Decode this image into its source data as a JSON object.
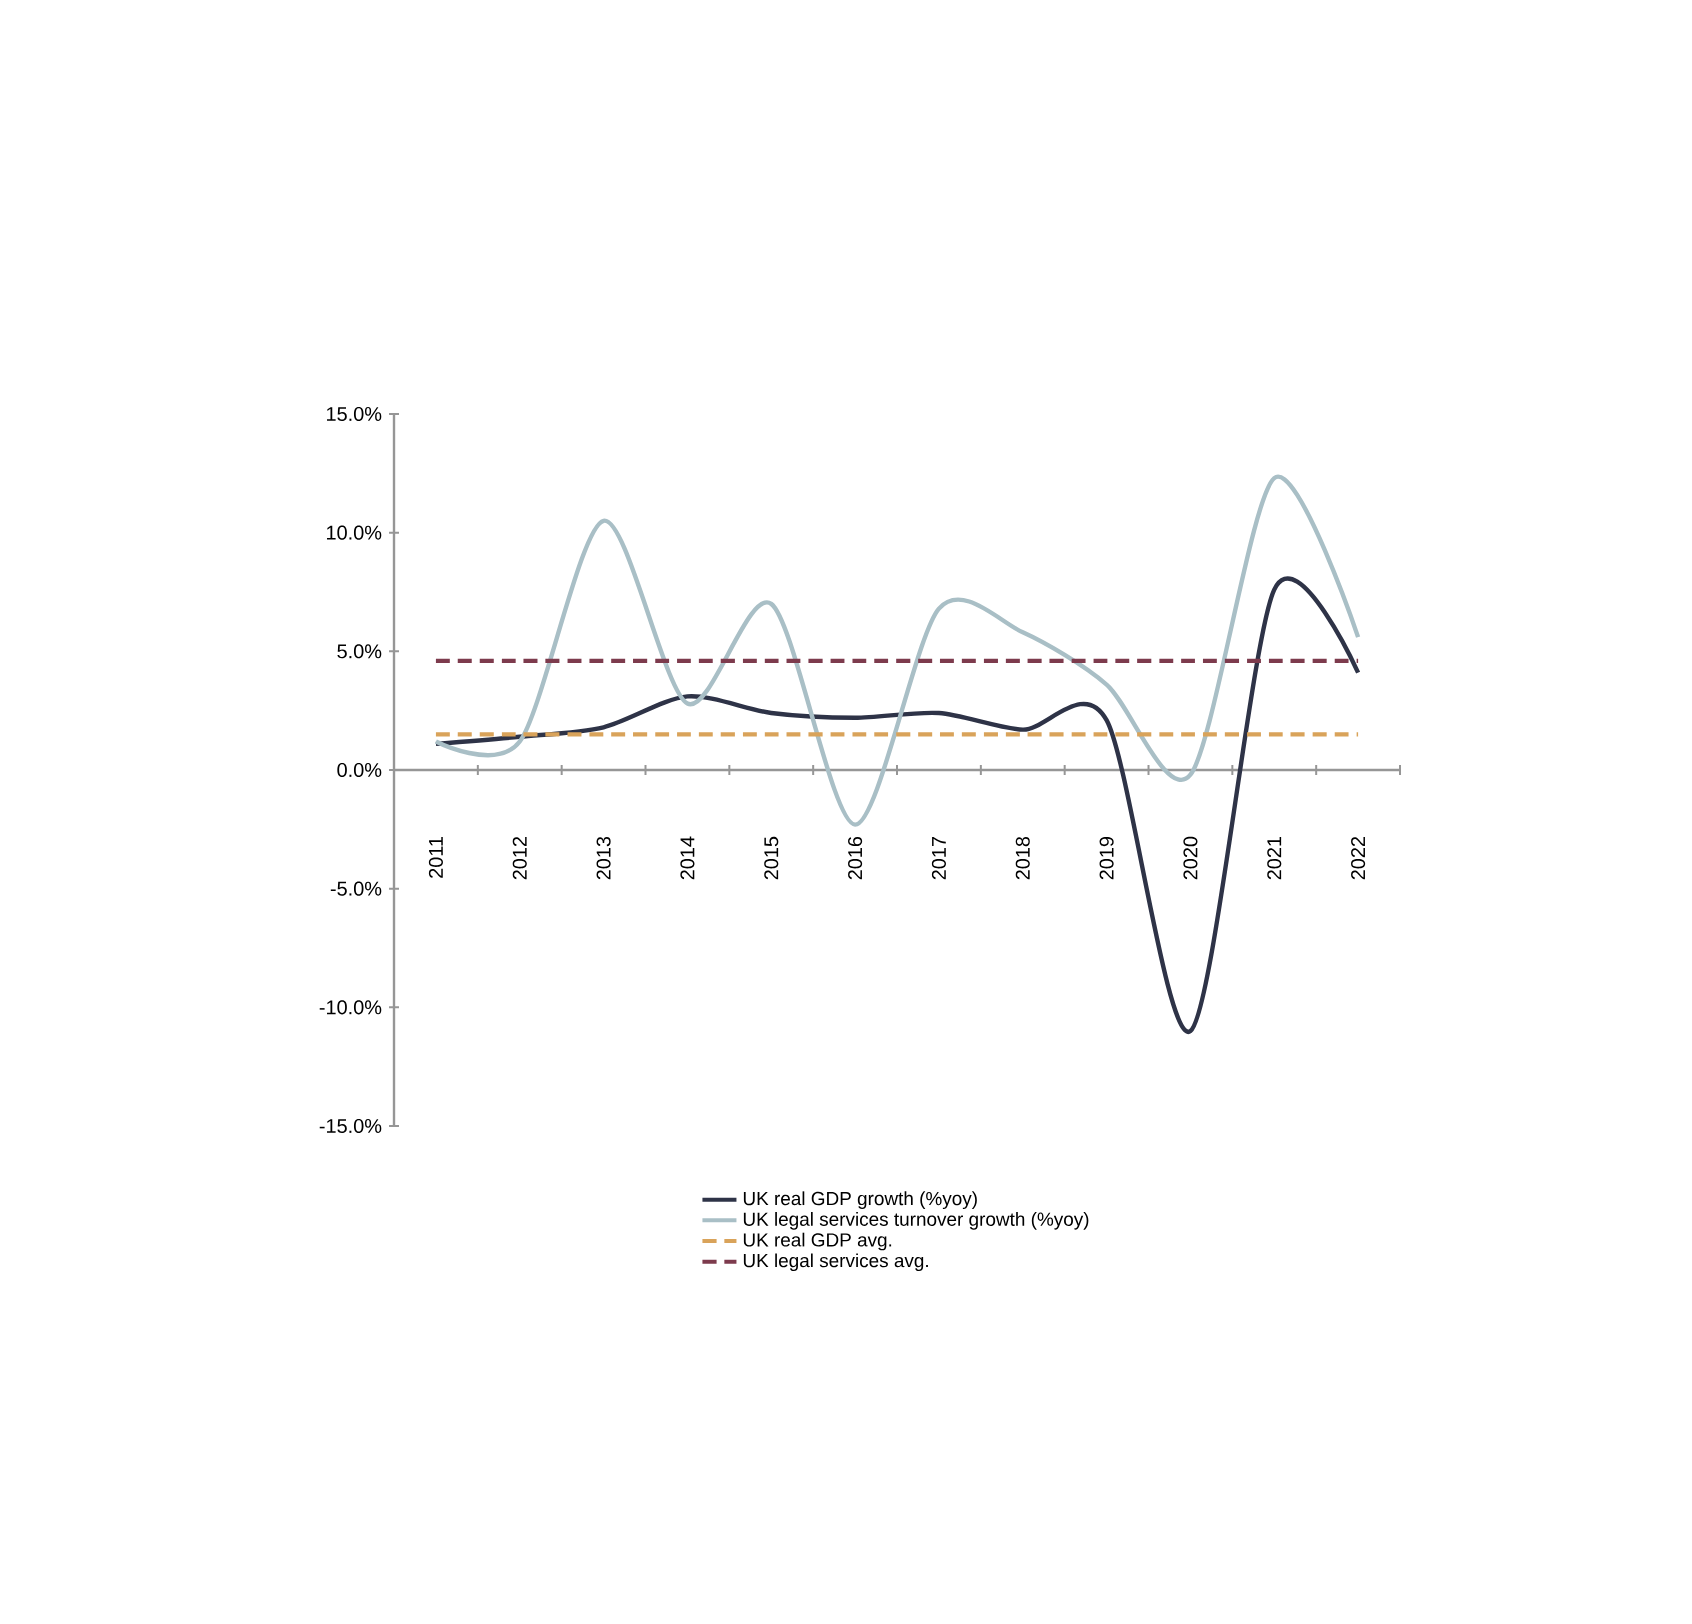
{
  "chart_data": {
    "type": "line",
    "categories": [
      "2011",
      "2012",
      "2013",
      "2014",
      "2015",
      "2016",
      "2017",
      "2018",
      "2019",
      "2020",
      "2021",
      "2022"
    ],
    "series": [
      {
        "name": "UK real GDP growth (%yoy)",
        "color": "#2e3347",
        "values": [
          1.1,
          1.4,
          1.8,
          3.1,
          2.4,
          2.2,
          2.4,
          1.7,
          2.1,
          -11.0,
          7.6,
          4.1
        ]
      },
      {
        "name": "UK legal services turnover growth (%yoy)",
        "color": "#a9bfc6",
        "values": [
          1.2,
          1.2,
          10.5,
          2.8,
          7.0,
          -2.3,
          6.8,
          5.8,
          3.6,
          -0.2,
          12.3,
          5.6
        ]
      },
      {
        "name": "UK real GDP avg.",
        "color": "#d9a35a",
        "line_style": "dashed",
        "values": [
          1.5,
          1.5,
          1.5,
          1.5,
          1.5,
          1.5,
          1.5,
          1.5,
          1.5,
          1.5,
          1.5,
          1.5
        ]
      },
      {
        "name": "UK legal services avg.",
        "color": "#7d3b4d",
        "line_style": "dashed",
        "values": [
          4.6,
          4.6,
          4.6,
          4.6,
          4.6,
          4.6,
          4.6,
          4.6,
          4.6,
          4.6,
          4.6,
          4.6
        ]
      }
    ],
    "ylim": [
      -15,
      15
    ],
    "yticks": [
      {
        "value": -15,
        "label": "-15.0%"
      },
      {
        "value": -10,
        "label": "-10.0%"
      },
      {
        "value": -5,
        "label": "-5.0%"
      },
      {
        "value": 0,
        "label": "0.0%"
      },
      {
        "value": 5,
        "label": "5.0%"
      },
      {
        "value": 10,
        "label": "10.0%"
      },
      {
        "value": 15,
        "label": "15.0%"
      }
    ],
    "line_style": "solid",
    "marker": "none",
    "legend": "bottom"
  }
}
